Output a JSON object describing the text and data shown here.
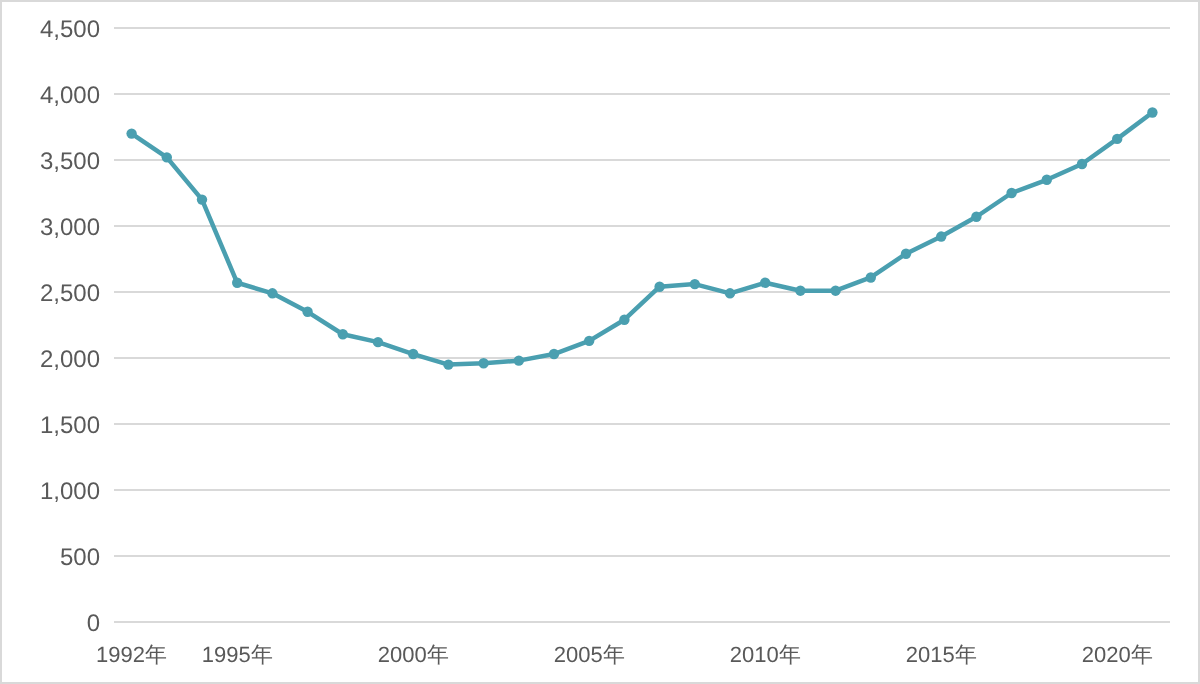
{
  "chart_data": {
    "type": "line",
    "categories": [
      "1992年",
      null,
      null,
      "1995年",
      null,
      null,
      null,
      null,
      "2000年",
      null,
      null,
      null,
      null,
      "2005年",
      null,
      null,
      null,
      null,
      "2010年",
      null,
      null,
      null,
      null,
      "2015年",
      null,
      null,
      null,
      null,
      "2020年",
      null
    ],
    "series": [
      {
        "color": "#4a9fb0",
        "values": [
          3700,
          3520,
          3200,
          2570,
          2490,
          2350,
          2180,
          2120,
          2030,
          1950,
          1960,
          1980,
          2030,
          2130,
          2290,
          2540,
          2560,
          2490,
          2570,
          2510,
          2510,
          2610,
          2790,
          2920,
          3070,
          3250,
          3350,
          3470,
          3660,
          3860
        ]
      }
    ],
    "ylim": [
      0,
      4500
    ],
    "yticks": [
      {
        "value": 0,
        "label": "0"
      },
      {
        "value": 500,
        "label": "500"
      },
      {
        "value": 1000,
        "label": "1,000"
      },
      {
        "value": 1500,
        "label": "1,500"
      },
      {
        "value": 2000,
        "label": "2,000"
      },
      {
        "value": 2500,
        "label": "2,500"
      },
      {
        "value": 3000,
        "label": "3,000"
      },
      {
        "value": 3500,
        "label": "3,500"
      },
      {
        "value": 4000,
        "label": "4,000"
      },
      {
        "value": 4500,
        "label": "4,500"
      }
    ],
    "grid": "y",
    "marker": "circle",
    "line_style": "solid"
  }
}
